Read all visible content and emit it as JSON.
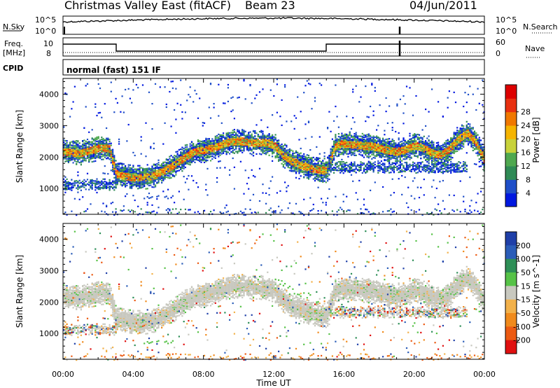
{
  "header": {
    "title": "Christmas Valley East (fitACF)",
    "beam": "Beam 23",
    "date": "04/Jun/2011"
  },
  "panels": {
    "nsky": {
      "label": "N.Sky",
      "right_label": "N.Search",
      "left_ticks": [
        "10^5",
        "10^0"
      ],
      "right_ticks": [
        "10^5",
        "10^0"
      ]
    },
    "freq": {
      "label_line1": "Freq.",
      "label_line2": "[MHz]",
      "right_label": "Nave",
      "left_ticks": [
        "10",
        "8"
      ],
      "right_ticks": [
        "60",
        "0"
      ]
    },
    "cpid": {
      "label": "CPID",
      "text": "normal (fast) 151 IF"
    }
  },
  "chart_data": [
    {
      "type": "heatmap",
      "name": "power",
      "ylabel": "Slant Range [km]",
      "xlabel": "Time UT",
      "x_ticks": [
        "00:00",
        "04:00",
        "08:00",
        "12:00",
        "16:00",
        "20:00",
        "00:00"
      ],
      "x_range_hours": [
        0,
        24
      ],
      "y_ticks": [
        1000,
        2000,
        3000,
        4000
      ],
      "y_range_km": [
        180,
        4500
      ],
      "colorbar": {
        "label": "Power [dB]",
        "ticks": [
          4,
          8,
          12,
          16,
          20,
          24,
          28
        ],
        "colors": [
          "#0018e0",
          "#1f4fc8",
          "#2f8a55",
          "#4fa84f",
          "#c8d23a",
          "#f5b400",
          "#f07800",
          "#e83010",
          "#dd0000"
        ]
      },
      "echo_band_center_km": [
        [
          0.0,
          2200
        ],
        [
          0.5,
          2180
        ],
        [
          1.0,
          2160
        ],
        [
          1.5,
          2240
        ],
        [
          2.0,
          2300
        ],
        [
          2.6,
          2320
        ],
        [
          3.0,
          1500
        ],
        [
          3.5,
          1420
        ],
        [
          4.0,
          1380
        ],
        [
          4.5,
          1380
        ],
        [
          5.0,
          1420
        ],
        [
          5.5,
          1520
        ],
        [
          6.0,
          1680
        ],
        [
          6.5,
          1860
        ],
        [
          7.0,
          2060
        ],
        [
          7.5,
          2200
        ],
        [
          8.0,
          2260
        ],
        [
          8.5,
          2300
        ],
        [
          9.0,
          2420
        ],
        [
          9.5,
          2520
        ],
        [
          10.0,
          2540
        ],
        [
          10.5,
          2500
        ],
        [
          11.0,
          2480
        ],
        [
          11.5,
          2500
        ],
        [
          12.0,
          2400
        ],
        [
          12.5,
          2100
        ],
        [
          13.0,
          1900
        ],
        [
          13.5,
          1780
        ],
        [
          14.0,
          1700
        ],
        [
          14.5,
          1620
        ],
        [
          15.0,
          1600
        ],
        [
          15.5,
          2400
        ],
        [
          16.0,
          2450
        ],
        [
          16.5,
          2420
        ],
        [
          17.0,
          2400
        ],
        [
          17.5,
          2380
        ],
        [
          18.0,
          2320
        ],
        [
          18.5,
          2240
        ],
        [
          19.0,
          2200
        ],
        [
          19.5,
          2280
        ],
        [
          20.0,
          2400
        ],
        [
          20.5,
          2320
        ],
        [
          21.0,
          2150
        ],
        [
          21.5,
          2100
        ],
        [
          22.0,
          2300
        ],
        [
          22.5,
          2600
        ],
        [
          23.0,
          2800
        ],
        [
          23.5,
          2500
        ],
        [
          24.0,
          1900
        ]
      ]
    },
    {
      "type": "heatmap",
      "name": "velocity",
      "ylabel": "Slant Range [km]",
      "xlabel": "Time UT",
      "x_ticks": [
        "00:00",
        "04:00",
        "08:00",
        "12:00",
        "16:00",
        "20:00",
        "00:00"
      ],
      "x_range_hours": [
        0,
        24
      ],
      "y_ticks": [
        1000,
        2000,
        3000,
        4000
      ],
      "y_range_km": [
        180,
        4500
      ],
      "colorbar": {
        "label": "Velocity [m s^-1]",
        "ticks": [
          200,
          100,
          50,
          15,
          -15,
          -50,
          -100,
          -200
        ],
        "colors": [
          "#1f3fa8",
          "#2b5db8",
          "#2e8f57",
          "#56c247",
          "#c8c8bf",
          "#f2b14a",
          "#f08a1c",
          "#ec5a12",
          "#e01010"
        ]
      },
      "ground_scatter_color": "#c8c8bf"
    }
  ]
}
